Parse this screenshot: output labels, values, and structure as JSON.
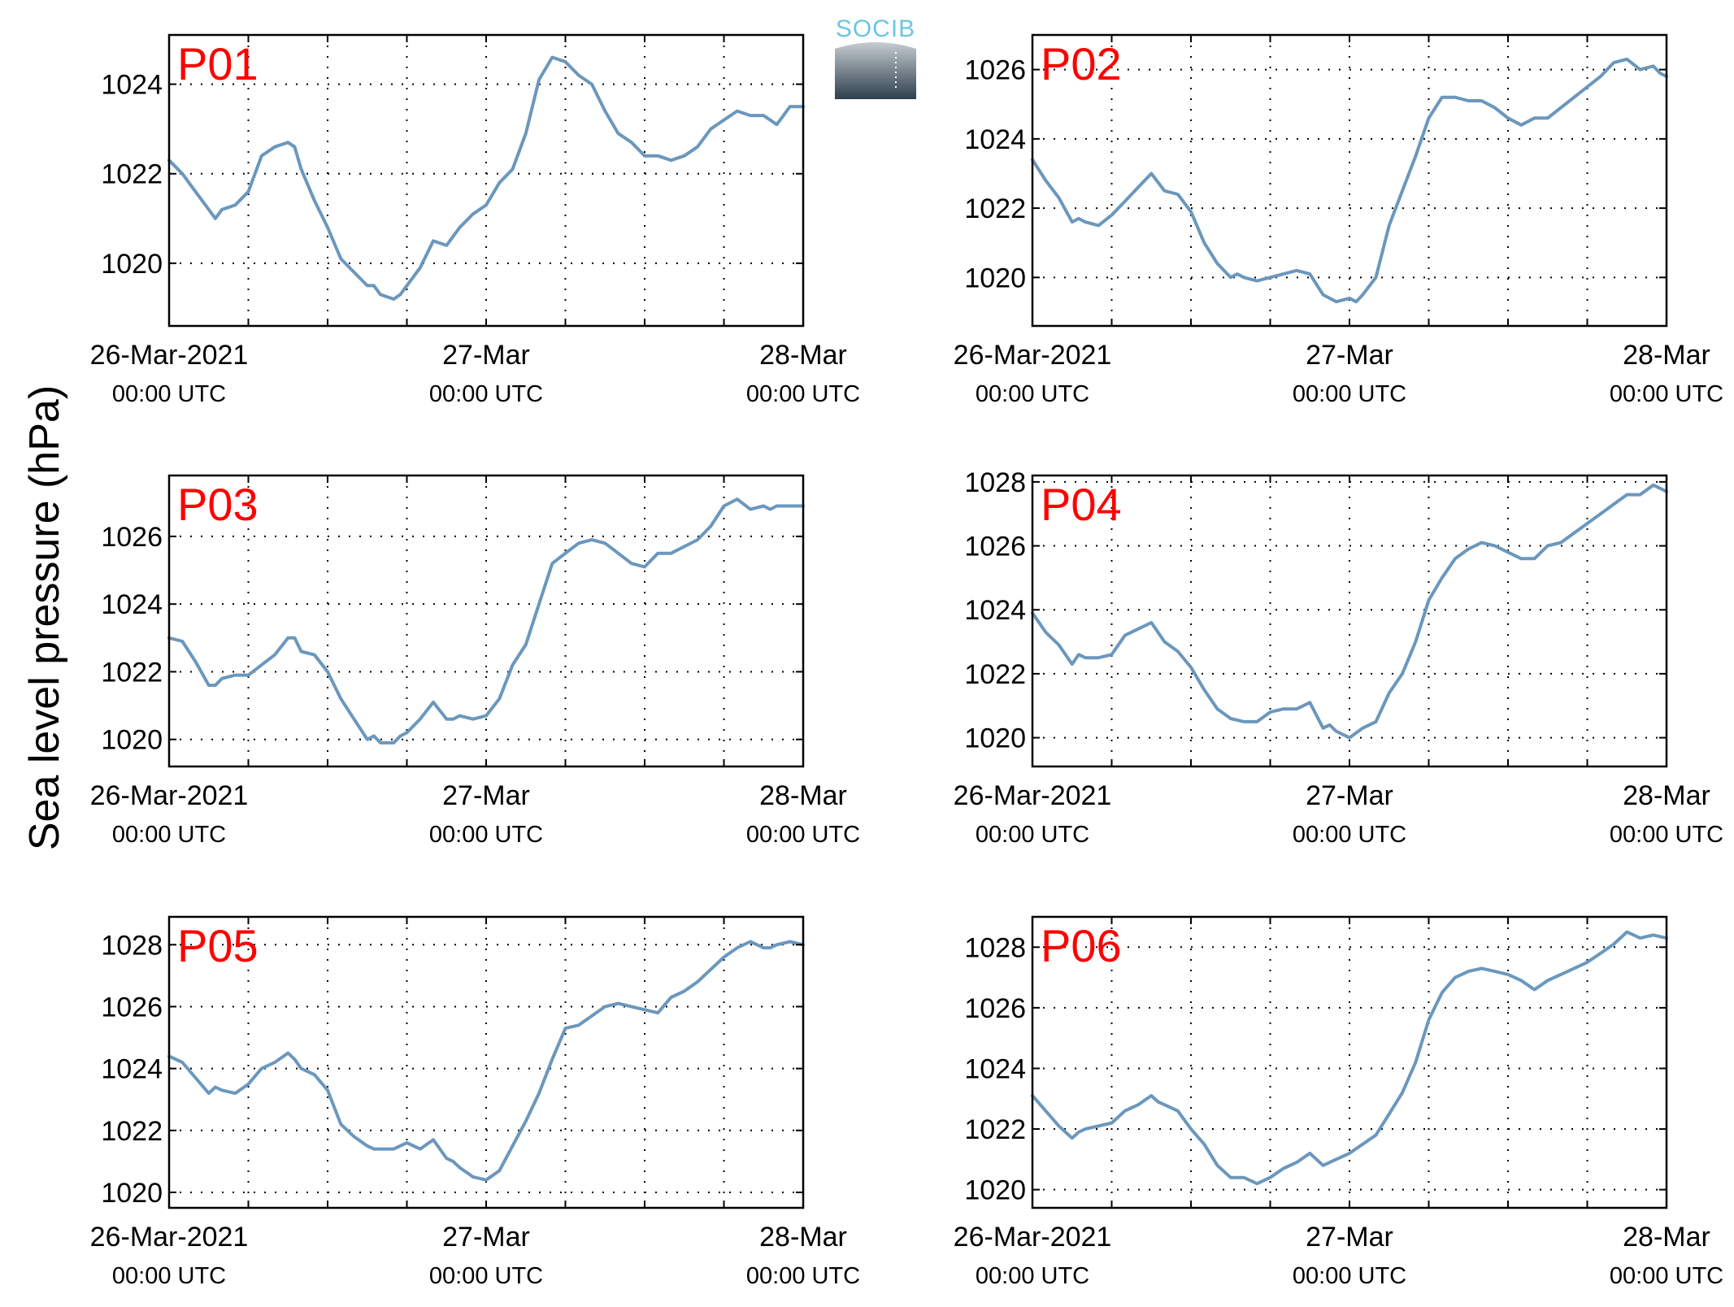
{
  "figure": {
    "ylabel": "Sea level pressure (hPa)",
    "logo_text": "SOCIB",
    "colors": {
      "series": "#6b97bd",
      "panel_label": "#ff0000",
      "axes": "#000000"
    }
  },
  "chart_data": [
    {
      "type": "line",
      "label": "P01",
      "x_unit": "hours since 26-Mar-2021 00:00 UTC",
      "xlim": [
        0,
        48
      ],
      "x_ticks": [
        0,
        6,
        12,
        18,
        24,
        30,
        36,
        42,
        48
      ],
      "x_ticklabels": [
        {
          "main": "26-Mar-2021",
          "sub": "00:00 UTC"
        },
        {
          "main": "",
          "sub": ""
        },
        {
          "main": "",
          "sub": ""
        },
        {
          "main": "",
          "sub": ""
        },
        {
          "main": "27-Mar",
          "sub": "00:00 UTC"
        },
        {
          "main": "",
          "sub": ""
        },
        {
          "main": "",
          "sub": ""
        },
        {
          "main": "",
          "sub": ""
        },
        {
          "main": "28-Mar",
          "sub": "00:00 UTC"
        }
      ],
      "ylim": [
        1018.6,
        1025.1
      ],
      "y_ticks": [
        1020,
        1022,
        1024
      ],
      "grid": true,
      "x": [
        0,
        1,
        2,
        3,
        3.5,
        4,
        5,
        6,
        7,
        8,
        9,
        9.5,
        10,
        11,
        12,
        13,
        14,
        15,
        15.5,
        16,
        17,
        17.5,
        18,
        19,
        20,
        21,
        21.5,
        22,
        23,
        24,
        25,
        26,
        27,
        28,
        29,
        30,
        31,
        31.5,
        32,
        33,
        34,
        35,
        36,
        37,
        38,
        39,
        40,
        41,
        42,
        43,
        44,
        45,
        46,
        47,
        48
      ],
      "y": [
        1022.3,
        1022.0,
        1021.6,
        1021.2,
        1021.0,
        1021.2,
        1021.3,
        1021.6,
        1022.4,
        1022.6,
        1022.7,
        1022.6,
        1022.1,
        1021.4,
        1020.8,
        1020.1,
        1019.8,
        1019.5,
        1019.5,
        1019.3,
        1019.2,
        1019.3,
        1019.5,
        1019.9,
        1020.5,
        1020.4,
        1020.6,
        1020.8,
        1021.1,
        1021.3,
        1021.8,
        1022.1,
        1022.9,
        1024.1,
        1024.6,
        1024.5,
        1024.2,
        1024.1,
        1024.0,
        1023.4,
        1022.9,
        1022.7,
        1022.4,
        1022.4,
        1022.3,
        1022.4,
        1022.6,
        1023.0,
        1023.2,
        1023.4,
        1023.3,
        1023.3,
        1023.1,
        1023.5,
        1023.5
      ]
    },
    {
      "type": "line",
      "label": "P02",
      "x_unit": "hours since 26-Mar-2021 00:00 UTC",
      "xlim": [
        0,
        48
      ],
      "x_ticks": [
        0,
        6,
        12,
        18,
        24,
        30,
        36,
        42,
        48
      ],
      "x_ticklabels": [
        {
          "main": "26-Mar-2021",
          "sub": "00:00 UTC"
        },
        {
          "main": "",
          "sub": ""
        },
        {
          "main": "",
          "sub": ""
        },
        {
          "main": "",
          "sub": ""
        },
        {
          "main": "27-Mar",
          "sub": "00:00 UTC"
        },
        {
          "main": "",
          "sub": ""
        },
        {
          "main": "",
          "sub": ""
        },
        {
          "main": "",
          "sub": ""
        },
        {
          "main": "28-Mar",
          "sub": "00:00 UTC"
        }
      ],
      "ylim": [
        1018.6,
        1027.0
      ],
      "y_ticks": [
        1020,
        1022,
        1024,
        1026
      ],
      "grid": true,
      "x": [
        0,
        1,
        2,
        3,
        3.5,
        4,
        5,
        6,
        7,
        8,
        9,
        10,
        11,
        12,
        13,
        14,
        15,
        15.5,
        16,
        17,
        18,
        19,
        20,
        21,
        22,
        22.5,
        23,
        24,
        24.5,
        25,
        26,
        27,
        28,
        29,
        30,
        31,
        32,
        33,
        34,
        35,
        36,
        37,
        38,
        39,
        40,
        41,
        42,
        43,
        44,
        45,
        46,
        47,
        47.5,
        48
      ],
      "y": [
        1023.4,
        1022.8,
        1022.3,
        1021.6,
        1021.7,
        1021.6,
        1021.5,
        1021.8,
        1022.2,
        1022.6,
        1023.0,
        1022.5,
        1022.4,
        1021.9,
        1021.0,
        1020.4,
        1020.0,
        1020.1,
        1020.0,
        1019.9,
        1020.0,
        1020.1,
        1020.2,
        1020.1,
        1019.5,
        1019.4,
        1019.3,
        1019.4,
        1019.3,
        1019.5,
        1020.0,
        1021.5,
        1022.5,
        1023.5,
        1024.6,
        1025.2,
        1025.2,
        1025.1,
        1025.1,
        1024.9,
        1024.6,
        1024.4,
        1024.6,
        1024.6,
        1024.9,
        1025.2,
        1025.5,
        1025.8,
        1026.2,
        1026.3,
        1026.0,
        1026.1,
        1025.9,
        1025.8
      ]
    },
    {
      "type": "line",
      "label": "P03",
      "x_unit": "hours since 26-Mar-2021 00:00 UTC",
      "xlim": [
        0,
        48
      ],
      "x_ticks": [
        0,
        6,
        12,
        18,
        24,
        30,
        36,
        42,
        48
      ],
      "x_ticklabels": [
        {
          "main": "26-Mar-2021",
          "sub": "00:00 UTC"
        },
        {
          "main": "",
          "sub": ""
        },
        {
          "main": "",
          "sub": ""
        },
        {
          "main": "",
          "sub": ""
        },
        {
          "main": "27-Mar",
          "sub": "00:00 UTC"
        },
        {
          "main": "",
          "sub": ""
        },
        {
          "main": "",
          "sub": ""
        },
        {
          "main": "",
          "sub": ""
        },
        {
          "main": "28-Mar",
          "sub": "00:00 UTC"
        }
      ],
      "ylim": [
        1019.2,
        1027.8
      ],
      "y_ticks": [
        1020,
        1022,
        1024,
        1026
      ],
      "grid": true,
      "x": [
        0,
        1,
        2,
        3,
        3.5,
        4,
        5,
        6,
        7,
        8,
        9,
        9.5,
        10,
        11,
        12,
        13,
        14,
        15,
        15.5,
        16,
        17,
        17.5,
        18,
        19,
        20,
        21,
        21.5,
        22,
        23,
        24,
        25,
        26,
        27,
        28,
        29,
        30,
        31,
        32,
        33,
        34,
        35,
        36,
        37,
        38,
        39,
        40,
        41,
        42,
        43,
        44,
        45,
        45.5,
        46,
        47,
        48
      ],
      "y": [
        1023.0,
        1022.9,
        1022.3,
        1021.6,
        1021.6,
        1021.8,
        1021.9,
        1021.9,
        1022.2,
        1022.5,
        1023.0,
        1023.0,
        1022.6,
        1022.5,
        1022.0,
        1021.2,
        1020.6,
        1020.0,
        1020.1,
        1019.9,
        1019.9,
        1020.1,
        1020.2,
        1020.6,
        1021.1,
        1020.6,
        1020.6,
        1020.7,
        1020.6,
        1020.7,
        1021.2,
        1022.2,
        1022.8,
        1024.0,
        1025.2,
        1025.5,
        1025.8,
        1025.9,
        1025.8,
        1025.5,
        1025.2,
        1025.1,
        1025.5,
        1025.5,
        1025.7,
        1025.9,
        1026.3,
        1026.9,
        1027.1,
        1026.8,
        1026.9,
        1026.8,
        1026.9,
        1026.9,
        1026.9
      ]
    },
    {
      "type": "line",
      "label": "P04",
      "x_unit": "hours since 26-Mar-2021 00:00 UTC",
      "xlim": [
        0,
        48
      ],
      "x_ticks": [
        0,
        6,
        12,
        18,
        24,
        30,
        36,
        42,
        48
      ],
      "x_ticklabels": [
        {
          "main": "26-Mar-2021",
          "sub": "00:00 UTC"
        },
        {
          "main": "",
          "sub": ""
        },
        {
          "main": "",
          "sub": ""
        },
        {
          "main": "",
          "sub": ""
        },
        {
          "main": "27-Mar",
          "sub": "00:00 UTC"
        },
        {
          "main": "",
          "sub": ""
        },
        {
          "main": "",
          "sub": ""
        },
        {
          "main": "",
          "sub": ""
        },
        {
          "main": "28-Mar",
          "sub": "00:00 UTC"
        }
      ],
      "ylim": [
        1019.1,
        1028.2
      ],
      "y_ticks": [
        1020,
        1022,
        1024,
        1026,
        1028
      ],
      "grid": true,
      "x": [
        0,
        1,
        2,
        3,
        3.5,
        4,
        5,
        6,
        7,
        8,
        9,
        10,
        11,
        12,
        13,
        14,
        15,
        16,
        17,
        18,
        19,
        20,
        21,
        22,
        22.5,
        23,
        24,
        25,
        26,
        27,
        28,
        29,
        30,
        31,
        32,
        33,
        34,
        35,
        36,
        37,
        38,
        39,
        40,
        41,
        42,
        43,
        44,
        45,
        46,
        47,
        48
      ],
      "y": [
        1023.9,
        1023.3,
        1022.9,
        1022.3,
        1022.6,
        1022.5,
        1022.5,
        1022.6,
        1023.2,
        1023.4,
        1023.6,
        1023.0,
        1022.7,
        1022.2,
        1021.5,
        1020.9,
        1020.6,
        1020.5,
        1020.5,
        1020.8,
        1020.9,
        1020.9,
        1021.1,
        1020.3,
        1020.4,
        1020.2,
        1020.0,
        1020.3,
        1020.5,
        1021.4,
        1022.0,
        1023.0,
        1024.3,
        1025.0,
        1025.6,
        1025.9,
        1026.1,
        1026.0,
        1025.8,
        1025.6,
        1025.6,
        1026.0,
        1026.1,
        1026.4,
        1026.7,
        1027.0,
        1027.3,
        1027.6,
        1027.6,
        1027.9,
        1027.7
      ]
    },
    {
      "type": "line",
      "label": "P05",
      "x_unit": "hours since 26-Mar-2021 00:00 UTC",
      "xlim": [
        0,
        48
      ],
      "x_ticks": [
        0,
        6,
        12,
        18,
        24,
        30,
        36,
        42,
        48
      ],
      "x_ticklabels": [
        {
          "main": "26-Mar-2021",
          "sub": "00:00 UTC"
        },
        {
          "main": "",
          "sub": ""
        },
        {
          "main": "",
          "sub": ""
        },
        {
          "main": "",
          "sub": ""
        },
        {
          "main": "27-Mar",
          "sub": "00:00 UTC"
        },
        {
          "main": "",
          "sub": ""
        },
        {
          "main": "",
          "sub": ""
        },
        {
          "main": "",
          "sub": ""
        },
        {
          "main": "28-Mar",
          "sub": "00:00 UTC"
        }
      ],
      "ylim": [
        1019.5,
        1028.9
      ],
      "y_ticks": [
        1020,
        1022,
        1024,
        1026,
        1028
      ],
      "grid": true,
      "x": [
        0,
        1,
        2,
        3,
        3.5,
        4,
        5,
        6,
        7,
        8,
        9,
        9.5,
        10,
        11,
        12,
        13,
        14,
        15,
        15.5,
        16,
        17,
        18,
        19,
        20,
        21,
        21.5,
        22,
        23,
        24,
        25,
        26,
        27,
        28,
        29,
        30,
        31,
        32,
        33,
        34,
        35,
        36,
        37,
        38,
        39,
        40,
        41,
        42,
        43,
        44,
        45,
        45.5,
        46,
        47,
        48
      ],
      "y": [
        1024.4,
        1024.2,
        1023.7,
        1023.2,
        1023.4,
        1023.3,
        1023.2,
        1023.5,
        1024.0,
        1024.2,
        1024.5,
        1024.3,
        1024.0,
        1023.8,
        1023.3,
        1022.2,
        1021.8,
        1021.5,
        1021.4,
        1021.4,
        1021.4,
        1021.6,
        1021.4,
        1021.7,
        1021.1,
        1021.0,
        1020.8,
        1020.5,
        1020.4,
        1020.7,
        1021.5,
        1022.3,
        1023.2,
        1024.3,
        1025.3,
        1025.4,
        1025.7,
        1026.0,
        1026.1,
        1026.0,
        1025.9,
        1025.8,
        1026.3,
        1026.5,
        1026.8,
        1027.2,
        1027.6,
        1027.9,
        1028.1,
        1027.9,
        1027.9,
        1028.0,
        1028.1,
        1028.0
      ]
    },
    {
      "type": "line",
      "label": "P06",
      "x_unit": "hours since 26-Mar-2021 00:00 UTC",
      "xlim": [
        0,
        48
      ],
      "x_ticks": [
        0,
        6,
        12,
        18,
        24,
        30,
        36,
        42,
        48
      ],
      "x_ticklabels": [
        {
          "main": "26-Mar-2021",
          "sub": "00:00 UTC"
        },
        {
          "main": "",
          "sub": ""
        },
        {
          "main": "",
          "sub": ""
        },
        {
          "main": "",
          "sub": ""
        },
        {
          "main": "27-Mar",
          "sub": "00:00 UTC"
        },
        {
          "main": "",
          "sub": ""
        },
        {
          "main": "",
          "sub": ""
        },
        {
          "main": "",
          "sub": ""
        },
        {
          "main": "28-Mar",
          "sub": "00:00 UTC"
        }
      ],
      "ylim": [
        1019.4,
        1029.0
      ],
      "y_ticks": [
        1020,
        1022,
        1024,
        1026,
        1028
      ],
      "grid": true,
      "x": [
        0,
        1,
        2,
        3,
        3.5,
        4,
        5,
        6,
        7,
        8,
        9,
        9.5,
        10,
        11,
        12,
        13,
        14,
        15,
        16,
        16.5,
        17,
        18,
        19,
        20,
        21,
        22,
        23,
        24,
        25,
        26,
        27,
        28,
        29,
        30,
        31,
        32,
        33,
        34,
        35,
        36,
        37,
        38,
        39,
        40,
        41,
        42,
        43,
        44,
        45,
        46,
        47,
        48
      ],
      "y": [
        1023.1,
        1022.6,
        1022.1,
        1021.7,
        1021.9,
        1022.0,
        1022.1,
        1022.2,
        1022.6,
        1022.8,
        1023.1,
        1022.9,
        1022.8,
        1022.6,
        1022.0,
        1021.5,
        1020.8,
        1020.4,
        1020.4,
        1020.3,
        1020.2,
        1020.4,
        1020.7,
        1020.9,
        1021.2,
        1020.8,
        1021.0,
        1021.2,
        1021.5,
        1021.8,
        1022.5,
        1023.2,
        1024.2,
        1025.6,
        1026.5,
        1027.0,
        1027.2,
        1027.3,
        1027.2,
        1027.1,
        1026.9,
        1026.6,
        1026.9,
        1027.1,
        1027.3,
        1027.5,
        1027.8,
        1028.1,
        1028.5,
        1028.3,
        1028.4,
        1028.3
      ]
    }
  ]
}
